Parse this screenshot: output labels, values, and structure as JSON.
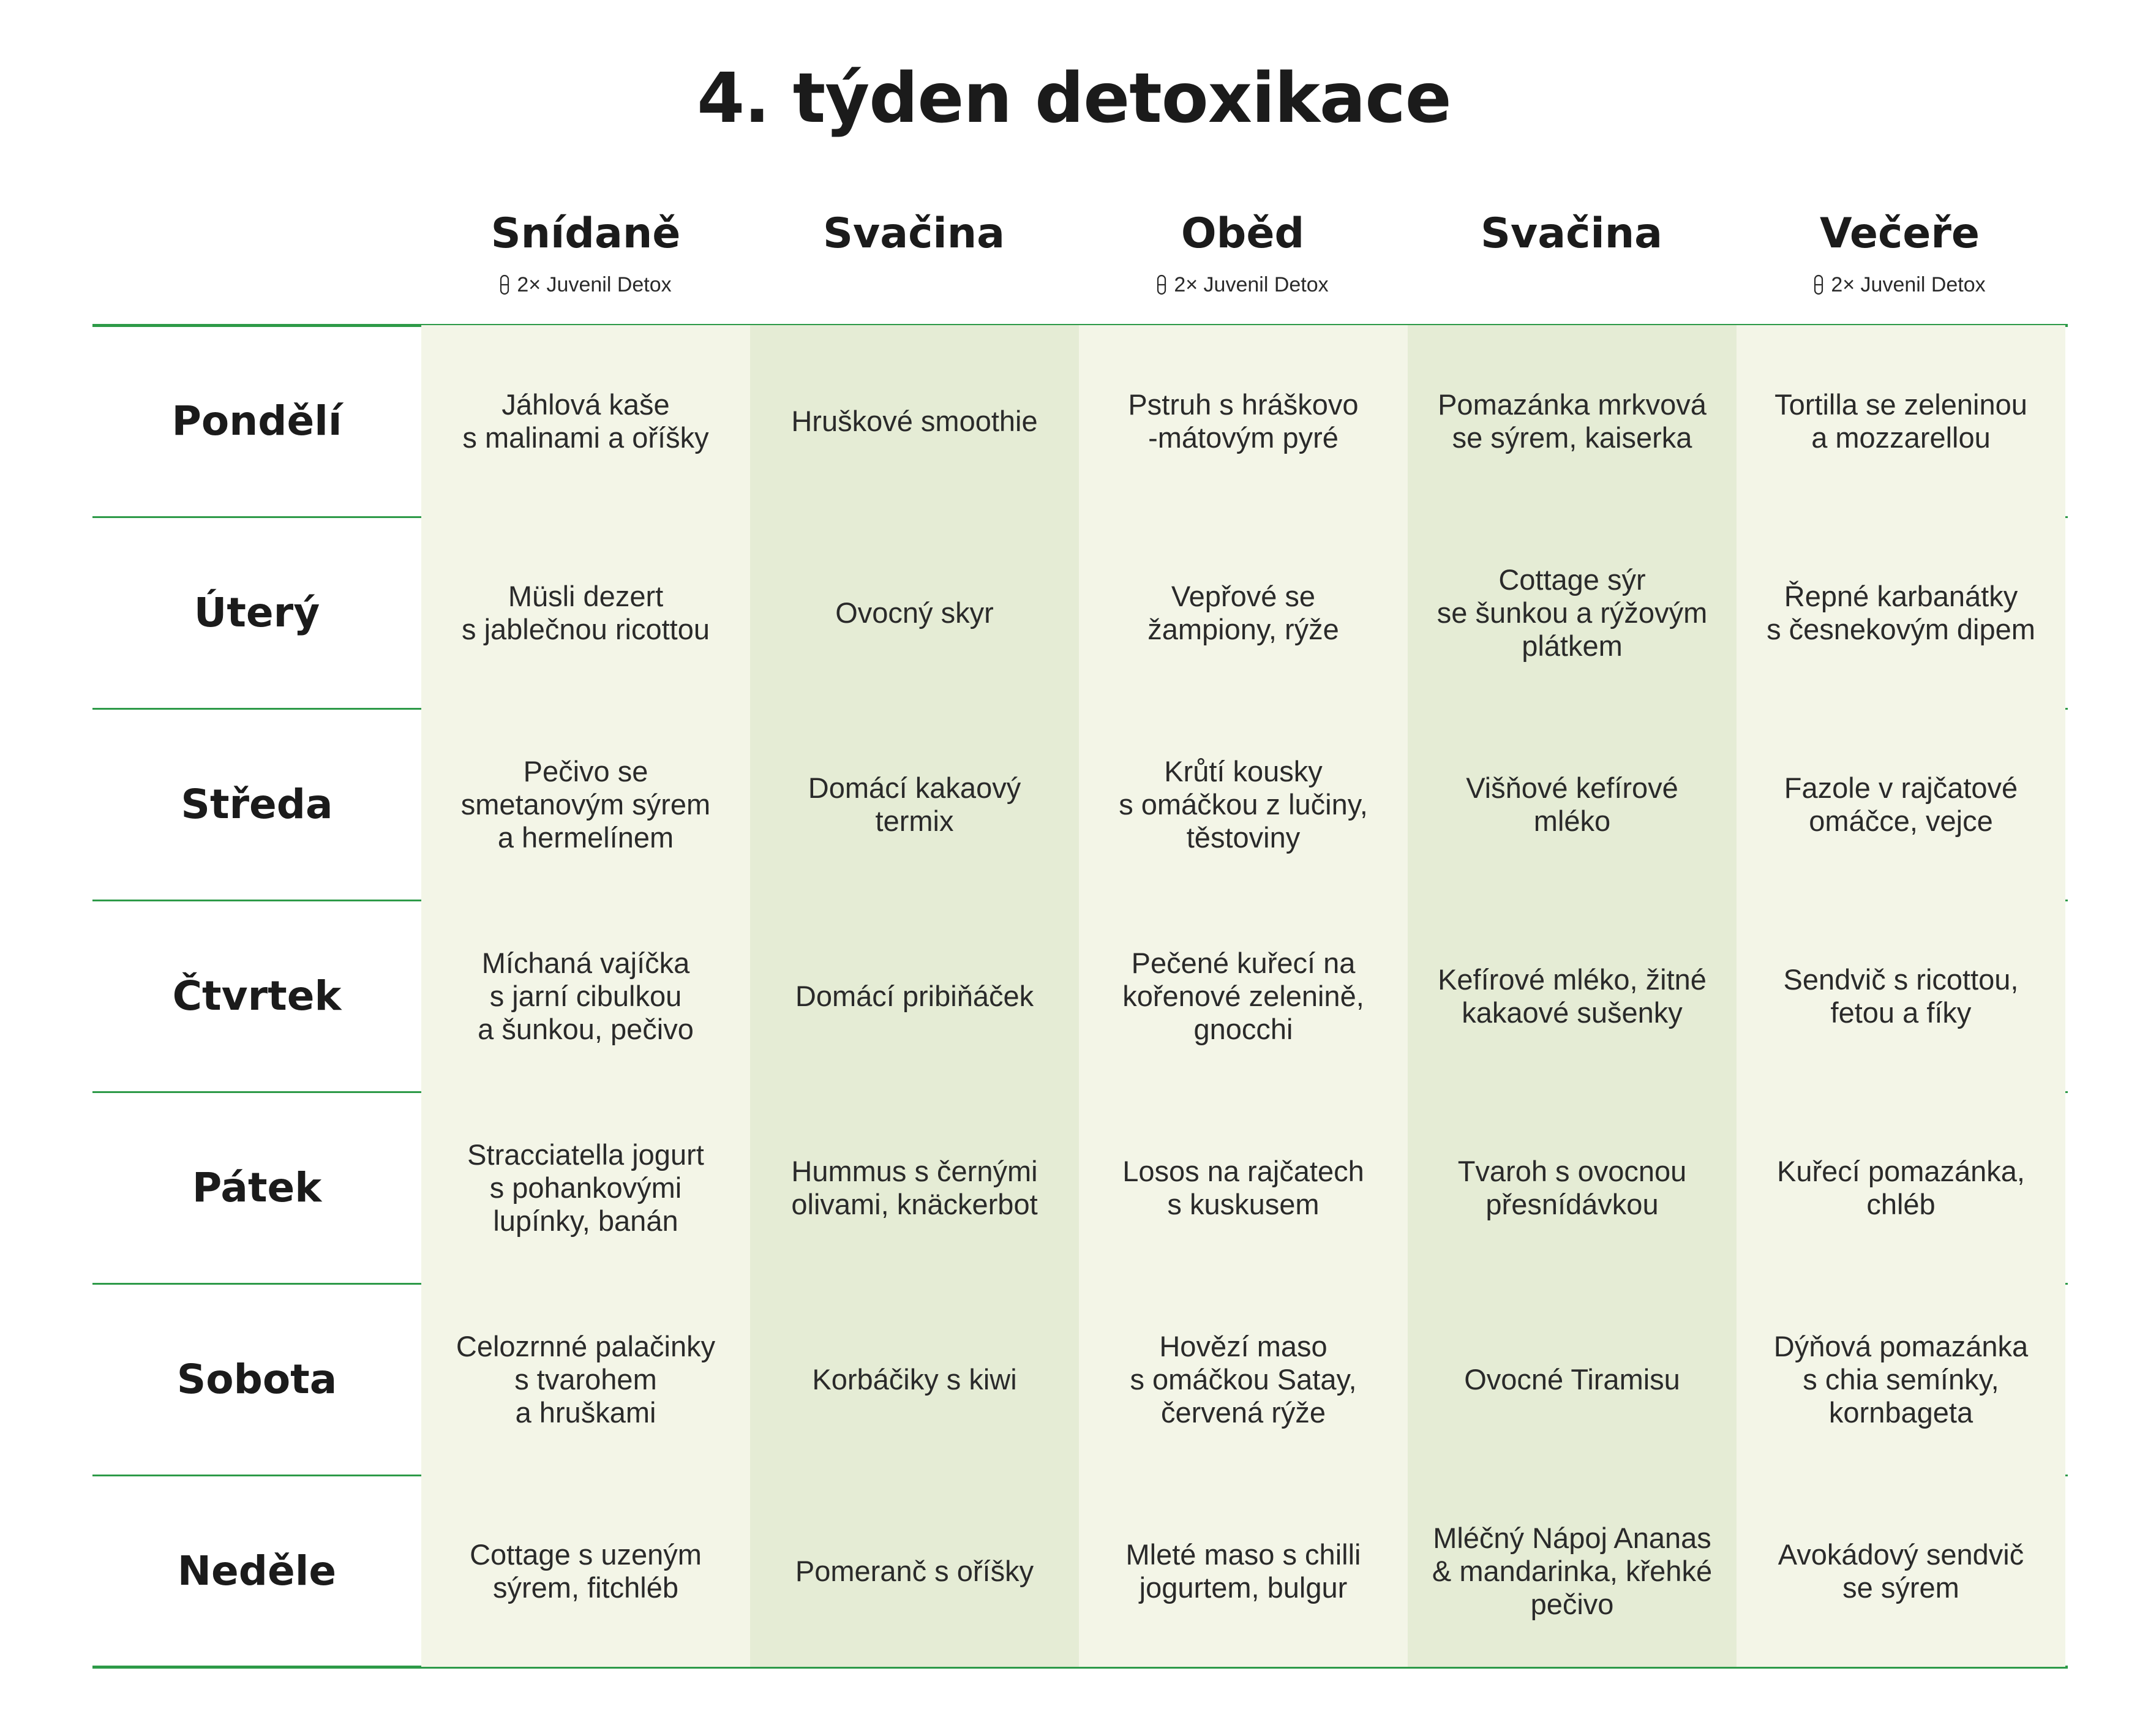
{
  "title": "4. týden detoxikace",
  "columns": [
    {
      "name": "Snídaně",
      "supplement": "2× Juvenil Detox"
    },
    {
      "name": "Svačina",
      "supplement": ""
    },
    {
      "name": "Oběd",
      "supplement": "2× Juvenil Detox"
    },
    {
      "name": "Svačina",
      "supplement": ""
    },
    {
      "name": "Večeře",
      "supplement": "2× Juvenil Detox"
    }
  ],
  "supplement_icon": "capsule-icon",
  "colors": {
    "rule": "#2d9a48",
    "cell_light": "#f3f5e7",
    "cell_dark": "#e5ecd5"
  },
  "days": [
    {
      "name": "Pondělí",
      "meals": [
        "Jáhlová kaše\ns malinami a oříšky",
        "Hruškové smoothie",
        "Pstruh s hráškovo\n-mátovým pyré",
        "Pomazánka mrkvová\nse sýrem, kaiserka",
        "Tortilla se zeleninou\na mozzarellou"
      ]
    },
    {
      "name": "Úterý",
      "meals": [
        "Müsli dezert\ns jablečnou ricottou",
        "Ovocný skyr",
        "Vepřové se\nžampiony, rýže",
        "Cottage sýr\nse šunkou a rýžovým\nplátkem",
        "Řepné karbanátky\ns česnekovým dipem"
      ]
    },
    {
      "name": "Středa",
      "meals": [
        "Pečivo se\nsmetanovým sýrem\na hermelínem",
        "Domácí kakaový\ntermix",
        "Krůtí kousky\ns omáčkou z lučiny,\ntěstoviny",
        "Višňové kefírové\nmléko",
        "Fazole v rajčatové\nomáčce, vejce"
      ]
    },
    {
      "name": "Čtvrtek",
      "meals": [
        "Míchaná vajíčka\ns jarní cibulkou\na šunkou, pečivo",
        "Domácí pribiňáček",
        "Pečené kuřecí na\nkořenové zelenině,\ngnocchi",
        "Kefírové mléko, žitné\nkakaové sušenky",
        "Sendvič s ricottou,\nfetou a fíky"
      ]
    },
    {
      "name": "Pátek",
      "meals": [
        "Stracciatella jogurt\ns pohankovými\nlupínky, banán",
        "Hummus s černými\nolivami, knäckerbot",
        "Losos na rajčatech\ns kuskusem",
        "Tvaroh s ovocnou\npřesnídávkou",
        "Kuřecí pomazánka,\nchléb"
      ]
    },
    {
      "name": "Sobota",
      "meals": [
        "Celozrnné palačinky\ns tvarohem\na hruškami",
        "Korbáčiky s kiwi",
        "Hovězí maso\ns omáčkou Satay,\nčervená rýže",
        "Ovocné Tiramisu",
        "Dýňová pomazánka\ns chia semínky,\nkornbageta"
      ]
    },
    {
      "name": "Neděle",
      "meals": [
        "Cottage s uzeným\nsýrem, fitchléb",
        "Pomeranč s oříšky",
        "Mleté maso s chilli\njogurtem, bulgur",
        "Mléčný Nápoj Ananas\n& mandarinka, křehké\npečivo",
        "Avokádový sendvič\nse sýrem"
      ]
    }
  ]
}
